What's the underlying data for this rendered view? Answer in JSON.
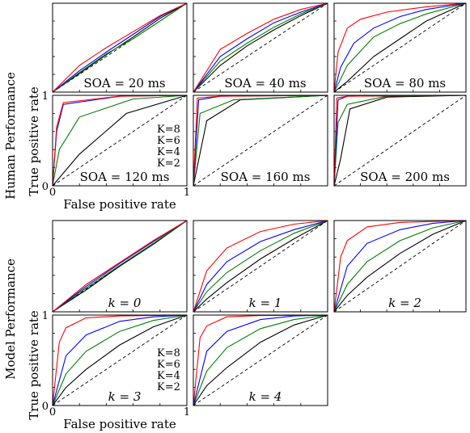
{
  "colors": {
    "K=8": "#000000",
    "K=6": "#008000",
    "K=4": "#0000ff",
    "K=2": "#ff0000"
  },
  "legend": [
    {
      "label": "K=8",
      "color": "#000000"
    },
    {
      "label": "K=6",
      "color": "#008000"
    },
    {
      "label": "K=4",
      "color": "#0000ff"
    },
    {
      "label": "K=2",
      "color": "#ff0000"
    }
  ],
  "sections": {
    "human": {
      "label": "Human Performance",
      "ylabel": "True positive rate",
      "xlabel": "False positive rate"
    },
    "model": {
      "label": "Model Performance",
      "ylabel": "True positive rate",
      "xlabel": "False positive rate"
    }
  },
  "axis_ticks": {
    "x": [
      "0",
      "1"
    ],
    "y": [
      "0",
      "1"
    ]
  },
  "chart_data": [
    {
      "id": "h1",
      "type": "line",
      "title": "SOA = 20 ms",
      "xlim": [
        0,
        1
      ],
      "ylim": [
        0,
        1
      ],
      "grid": false,
      "series": [
        {
          "name": "K=8",
          "x": [
            0,
            0.2,
            0.4,
            0.6,
            0.8,
            1
          ],
          "y": [
            0,
            0.21,
            0.42,
            0.62,
            0.83,
            1
          ]
        },
        {
          "name": "K=6",
          "x": [
            0,
            0.2,
            0.4,
            0.6,
            0.8,
            1
          ],
          "y": [
            0,
            0.22,
            0.43,
            0.6,
            0.8,
            1
          ]
        },
        {
          "name": "K=4",
          "x": [
            0,
            0.2,
            0.4,
            0.6,
            0.8,
            1
          ],
          "y": [
            0,
            0.24,
            0.45,
            0.65,
            0.85,
            1
          ]
        },
        {
          "name": "K=2",
          "x": [
            0,
            0.2,
            0.4,
            0.6,
            0.8,
            1
          ],
          "y": [
            0,
            0.3,
            0.5,
            0.68,
            0.86,
            1
          ]
        }
      ]
    },
    {
      "id": "h2",
      "type": "line",
      "title": "SOA = 40 ms",
      "xlim": [
        0,
        1
      ],
      "ylim": [
        0,
        1
      ],
      "grid": false,
      "series": [
        {
          "name": "K=8",
          "x": [
            0,
            0.2,
            0.4,
            0.6,
            0.8,
            1
          ],
          "y": [
            0,
            0.3,
            0.52,
            0.7,
            0.86,
            1
          ]
        },
        {
          "name": "K=6",
          "x": [
            0,
            0.2,
            0.4,
            0.6,
            0.8,
            1
          ],
          "y": [
            0,
            0.35,
            0.55,
            0.73,
            0.88,
            1
          ]
        },
        {
          "name": "K=4",
          "x": [
            0,
            0.2,
            0.4,
            0.6,
            0.8,
            1
          ],
          "y": [
            0,
            0.4,
            0.6,
            0.78,
            0.9,
            1
          ]
        },
        {
          "name": "K=2",
          "x": [
            0,
            0.2,
            0.4,
            0.6,
            0.8,
            1
          ],
          "y": [
            0,
            0.48,
            0.66,
            0.82,
            0.93,
            1
          ]
        }
      ]
    },
    {
      "id": "h3",
      "type": "line",
      "title": "SOA = 80 ms",
      "xlim": [
        0,
        1
      ],
      "ylim": [
        0,
        1
      ],
      "grid": false,
      "series": [
        {
          "name": "K=8",
          "x": [
            0,
            0.1,
            0.3,
            0.5,
            0.7,
            1
          ],
          "y": [
            0,
            0.12,
            0.4,
            0.6,
            0.8,
            1
          ]
        },
        {
          "name": "K=6",
          "x": [
            0,
            0.1,
            0.3,
            0.5,
            0.7,
            1
          ],
          "y": [
            0,
            0.3,
            0.62,
            0.77,
            0.88,
            1
          ]
        },
        {
          "name": "K=4",
          "x": [
            0,
            0.05,
            0.15,
            0.3,
            0.5,
            0.7,
            1
          ],
          "y": [
            0,
            0.28,
            0.55,
            0.72,
            0.85,
            0.93,
            1
          ]
        },
        {
          "name": "K=2",
          "x": [
            0,
            0.03,
            0.1,
            0.2,
            0.4,
            0.7,
            1
          ],
          "y": [
            0,
            0.45,
            0.72,
            0.82,
            0.9,
            0.96,
            1
          ]
        }
      ]
    },
    {
      "id": "h4",
      "type": "line",
      "title": "SOA = 120 ms",
      "xlim": [
        0,
        1
      ],
      "ylim": [
        0,
        1
      ],
      "grid": false,
      "series": [
        {
          "name": "K=8",
          "x": [
            0,
            0.2,
            0.55,
            1
          ],
          "y": [
            0,
            0.35,
            0.8,
            1
          ]
        },
        {
          "name": "K=6",
          "x": [
            0,
            0.05,
            0.2,
            0.6,
            1
          ],
          "y": [
            0,
            0.4,
            0.76,
            0.96,
            1
          ]
        },
        {
          "name": "K=4",
          "x": [
            0,
            0.03,
            0.08,
            0.5,
            1
          ],
          "y": [
            0,
            0.6,
            0.9,
            0.99,
            1
          ]
        },
        {
          "name": "K=2",
          "x": [
            0,
            0.03,
            0.08,
            0.5,
            1
          ],
          "y": [
            0,
            0.65,
            0.92,
            0.99,
            1
          ]
        }
      ]
    },
    {
      "id": "h5",
      "type": "line",
      "title": "SOA = 160 ms",
      "xlim": [
        0,
        1
      ],
      "ylim": [
        0,
        1
      ],
      "grid": false,
      "series": [
        {
          "name": "K=8",
          "x": [
            0,
            0.1,
            0.35,
            1
          ],
          "y": [
            0,
            0.72,
            0.95,
            1
          ]
        },
        {
          "name": "K=6",
          "x": [
            0,
            0.05,
            0.3,
            1
          ],
          "y": [
            0,
            0.8,
            0.95,
            1
          ]
        },
        {
          "name": "K=4",
          "x": [
            0,
            0.04,
            0.2,
            1
          ],
          "y": [
            0,
            0.95,
            0.99,
            1
          ]
        },
        {
          "name": "K=2",
          "x": [
            0,
            0.03,
            0.2,
            1
          ],
          "y": [
            0,
            0.97,
            0.99,
            1
          ]
        }
      ]
    },
    {
      "id": "h6",
      "type": "line",
      "title": "SOA = 200 ms",
      "xlim": [
        0,
        1
      ],
      "ylim": [
        0,
        1
      ],
      "grid": false,
      "series": [
        {
          "name": "K=8",
          "x": [
            0,
            0.05,
            0.12,
            0.4,
            1
          ],
          "y": [
            0,
            0.3,
            0.85,
            0.98,
            1
          ]
        },
        {
          "name": "K=6",
          "x": [
            0,
            0.03,
            0.1,
            0.4,
            1
          ],
          "y": [
            0,
            0.7,
            0.9,
            0.99,
            1
          ]
        },
        {
          "name": "K=4",
          "x": [
            0,
            0.03,
            0.1,
            1
          ],
          "y": [
            0,
            0.95,
            0.99,
            1
          ]
        },
        {
          "name": "K=2",
          "x": [
            0,
            0.02,
            0.1,
            1
          ],
          "y": [
            0,
            0.97,
            0.99,
            1
          ]
        }
      ]
    },
    {
      "id": "m1",
      "type": "line",
      "title": "k = 0",
      "xlim": [
        0,
        1
      ],
      "ylim": [
        0,
        1
      ],
      "grid": false,
      "series": [
        {
          "name": "K=8",
          "x": [
            0,
            0.25,
            0.5,
            0.75,
            1
          ],
          "y": [
            0,
            0.24,
            0.5,
            0.74,
            1
          ]
        },
        {
          "name": "K=6",
          "x": [
            0,
            0.25,
            0.5,
            0.75,
            1
          ],
          "y": [
            0,
            0.26,
            0.51,
            0.75,
            1
          ]
        },
        {
          "name": "K=4",
          "x": [
            0,
            0.25,
            0.5,
            0.75,
            1
          ],
          "y": [
            0,
            0.28,
            0.53,
            0.77,
            1
          ]
        },
        {
          "name": "K=2",
          "x": [
            0,
            0.25,
            0.5,
            0.75,
            1
          ],
          "y": [
            0,
            0.3,
            0.54,
            0.78,
            1
          ]
        }
      ]
    },
    {
      "id": "m2",
      "type": "line",
      "title": "k = 1",
      "xlim": [
        0,
        1
      ],
      "ylim": [
        0,
        1
      ],
      "grid": false,
      "series": [
        {
          "name": "K=8",
          "x": [
            0,
            0.1,
            0.25,
            0.5,
            0.75,
            1
          ],
          "y": [
            0,
            0.14,
            0.32,
            0.58,
            0.8,
            1
          ]
        },
        {
          "name": "K=6",
          "x": [
            0,
            0.1,
            0.25,
            0.5,
            0.75,
            1
          ],
          "y": [
            0,
            0.22,
            0.43,
            0.67,
            0.86,
            1
          ]
        },
        {
          "name": "K=4",
          "x": [
            0,
            0.1,
            0.25,
            0.5,
            0.75,
            1
          ],
          "y": [
            0,
            0.3,
            0.55,
            0.77,
            0.9,
            1
          ]
        },
        {
          "name": "K=2",
          "x": [
            0,
            0.1,
            0.25,
            0.5,
            0.75,
            1
          ],
          "y": [
            0,
            0.45,
            0.7,
            0.88,
            0.96,
            1
          ]
        }
      ]
    },
    {
      "id": "m3",
      "type": "line",
      "title": "k = 2",
      "xlim": [
        0,
        1
      ],
      "ylim": [
        0,
        1
      ],
      "grid": false,
      "series": [
        {
          "name": "K=8",
          "x": [
            0,
            0.1,
            0.25,
            0.5,
            0.75,
            1
          ],
          "y": [
            0,
            0.18,
            0.38,
            0.64,
            0.85,
            1
          ]
        },
        {
          "name": "K=6",
          "x": [
            0,
            0.1,
            0.25,
            0.5,
            0.75,
            1
          ],
          "y": [
            0,
            0.3,
            0.55,
            0.78,
            0.92,
            1
          ]
        },
        {
          "name": "K=4",
          "x": [
            0,
            0.1,
            0.25,
            0.5,
            0.75,
            1
          ],
          "y": [
            0,
            0.5,
            0.75,
            0.9,
            0.97,
            1
          ]
        },
        {
          "name": "K=2",
          "x": [
            0,
            0.05,
            0.1,
            0.25,
            0.5,
            1
          ],
          "y": [
            0,
            0.6,
            0.78,
            0.93,
            0.98,
            1
          ]
        }
      ]
    },
    {
      "id": "m4",
      "type": "line",
      "title": "k = 3",
      "xlim": [
        0,
        1
      ],
      "ylim": [
        0,
        1
      ],
      "grid": false,
      "series": [
        {
          "name": "K=8",
          "x": [
            0,
            0.1,
            0.25,
            0.5,
            0.75,
            1
          ],
          "y": [
            0,
            0.2,
            0.4,
            0.67,
            0.87,
            1
          ]
        },
        {
          "name": "K=6",
          "x": [
            0,
            0.1,
            0.25,
            0.5,
            0.75,
            1
          ],
          "y": [
            0,
            0.35,
            0.6,
            0.82,
            0.94,
            1
          ]
        },
        {
          "name": "K=4",
          "x": [
            0,
            0.1,
            0.25,
            0.5,
            0.75,
            1
          ],
          "y": [
            0,
            0.55,
            0.78,
            0.93,
            0.98,
            1
          ]
        },
        {
          "name": "K=2",
          "x": [
            0,
            0.05,
            0.1,
            0.25,
            0.5,
            1
          ],
          "y": [
            0,
            0.7,
            0.86,
            0.97,
            0.99,
            1
          ]
        }
      ]
    },
    {
      "id": "m5",
      "type": "line",
      "title": "k = 4",
      "xlim": [
        0,
        1
      ],
      "ylim": [
        0,
        1
      ],
      "grid": false,
      "series": [
        {
          "name": "K=8",
          "x": [
            0,
            0.1,
            0.25,
            0.5,
            0.75,
            1
          ],
          "y": [
            0,
            0.22,
            0.42,
            0.7,
            0.89,
            1
          ]
        },
        {
          "name": "K=6",
          "x": [
            0,
            0.1,
            0.25,
            0.5,
            0.75,
            1
          ],
          "y": [
            0,
            0.38,
            0.64,
            0.85,
            0.95,
            1
          ]
        },
        {
          "name": "K=4",
          "x": [
            0,
            0.1,
            0.25,
            0.5,
            0.75,
            1
          ],
          "y": [
            0,
            0.6,
            0.82,
            0.95,
            0.99,
            1
          ]
        },
        {
          "name": "K=2",
          "x": [
            0,
            0.05,
            0.1,
            0.25,
            0.5,
            1
          ],
          "y": [
            0,
            0.75,
            0.88,
            0.98,
            0.995,
            1
          ]
        }
      ]
    }
  ]
}
